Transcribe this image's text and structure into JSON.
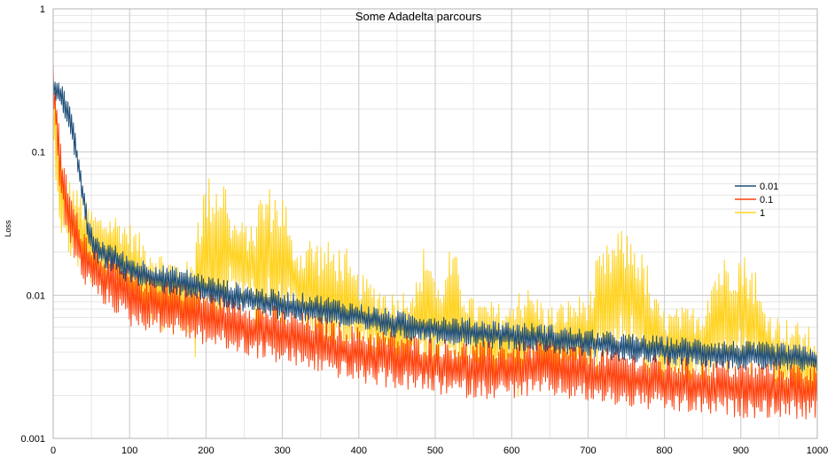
{
  "chart_data": {
    "type": "line",
    "title": "Some Adadelta parcours",
    "xlabel": "",
    "ylabel": "Loss",
    "xlim": [
      0,
      1000
    ],
    "ylim": [
      0.001,
      1
    ],
    "y_scale": "log",
    "grid": true,
    "legend_position": "right",
    "x_ticks": [
      0,
      100,
      200,
      300,
      400,
      500,
      600,
      700,
      800,
      900,
      1000
    ],
    "x_tick_labels": [
      "0",
      "100",
      "200",
      "300",
      "400",
      "500",
      "600",
      "700",
      "800",
      "900",
      "1000"
    ],
    "y_ticks": [
      0.001,
      0.01,
      0.1,
      1
    ],
    "y_tick_labels": [
      "0.001",
      "0.01",
      "0.1",
      "1"
    ],
    "series": [
      {
        "name": "0.01",
        "color": "#1f4e79",
        "noise": 0.1,
        "points": [
          [
            0,
            0.29
          ],
          [
            5,
            0.28
          ],
          [
            10,
            0.25
          ],
          [
            15,
            0.22
          ],
          [
            20,
            0.18
          ],
          [
            25,
            0.14
          ],
          [
            30,
            0.1
          ],
          [
            35,
            0.07
          ],
          [
            40,
            0.045
          ],
          [
            45,
            0.03
          ],
          [
            50,
            0.024
          ],
          [
            60,
            0.02
          ],
          [
            70,
            0.019
          ],
          [
            80,
            0.018
          ],
          [
            100,
            0.015
          ],
          [
            120,
            0.014
          ],
          [
            140,
            0.013
          ],
          [
            160,
            0.0125
          ],
          [
            180,
            0.012
          ],
          [
            200,
            0.011
          ],
          [
            250,
            0.0095
          ],
          [
            300,
            0.0085
          ],
          [
            350,
            0.008
          ],
          [
            400,
            0.007
          ],
          [
            450,
            0.0062
          ],
          [
            500,
            0.0058
          ],
          [
            550,
            0.0055
          ],
          [
            600,
            0.0052
          ],
          [
            650,
            0.005
          ],
          [
            700,
            0.0046
          ],
          [
            750,
            0.0043
          ],
          [
            800,
            0.0041
          ],
          [
            850,
            0.004
          ],
          [
            900,
            0.0038
          ],
          [
            950,
            0.0037
          ],
          [
            1000,
            0.0035
          ]
        ]
      },
      {
        "name": "0.1",
        "color": "#ff420e",
        "noise": 0.2,
        "points": [
          [
            0,
            0.28
          ],
          [
            3,
            0.2
          ],
          [
            6,
            0.12
          ],
          [
            10,
            0.07
          ],
          [
            15,
            0.05
          ],
          [
            20,
            0.04
          ],
          [
            25,
            0.03
          ],
          [
            30,
            0.025
          ],
          [
            40,
            0.019
          ],
          [
            50,
            0.016
          ],
          [
            60,
            0.014
          ],
          [
            80,
            0.012
          ],
          [
            100,
            0.0095
          ],
          [
            120,
            0.009
          ],
          [
            150,
            0.0085
          ],
          [
            200,
            0.007
          ],
          [
            250,
            0.006
          ],
          [
            300,
            0.0052
          ],
          [
            350,
            0.0045
          ],
          [
            400,
            0.0038
          ],
          [
            450,
            0.0035
          ],
          [
            500,
            0.0032
          ],
          [
            550,
            0.003
          ],
          [
            600,
            0.003
          ],
          [
            650,
            0.0031
          ],
          [
            700,
            0.0028
          ],
          [
            750,
            0.0026
          ],
          [
            800,
            0.0024
          ],
          [
            850,
            0.0023
          ],
          [
            900,
            0.0022
          ],
          [
            950,
            0.0022
          ],
          [
            1000,
            0.0021
          ]
        ]
      },
      {
        "name": "1",
        "color": "#ffd320",
        "noise": 0.28,
        "points": [
          [
            0,
            0.2
          ],
          [
            5,
            0.1
          ],
          [
            10,
            0.05
          ],
          [
            15,
            0.04
          ],
          [
            20,
            0.035
          ],
          [
            30,
            0.03
          ],
          [
            40,
            0.025
          ],
          [
            50,
            0.022
          ],
          [
            60,
            0.02
          ],
          [
            80,
            0.02
          ],
          [
            100,
            0.017
          ],
          [
            120,
            0.013
          ],
          [
            150,
            0.01
          ],
          [
            180,
            0.009
          ],
          [
            200,
            0.02
          ],
          [
            220,
            0.022
          ],
          [
            240,
            0.018
          ],
          [
            260,
            0.016
          ],
          [
            280,
            0.02
          ],
          [
            300,
            0.018
          ],
          [
            320,
            0.012
          ],
          [
            350,
            0.01
          ],
          [
            380,
            0.009
          ],
          [
            400,
            0.0075
          ],
          [
            450,
            0.0055
          ],
          [
            480,
            0.007
          ],
          [
            490,
            0.009
          ],
          [
            500,
            0.006
          ],
          [
            520,
            0.008
          ],
          [
            530,
            0.007
          ],
          [
            550,
            0.005
          ],
          [
            600,
            0.0045
          ],
          [
            620,
            0.006
          ],
          [
            650,
            0.0045
          ],
          [
            700,
            0.0055
          ],
          [
            720,
            0.008
          ],
          [
            740,
            0.011
          ],
          [
            760,
            0.01
          ],
          [
            780,
            0.006
          ],
          [
            800,
            0.0042
          ],
          [
            850,
            0.0045
          ],
          [
            870,
            0.007
          ],
          [
            900,
            0.008
          ],
          [
            920,
            0.006
          ],
          [
            940,
            0.004
          ],
          [
            970,
            0.0035
          ],
          [
            1000,
            0.003
          ]
        ],
        "spikes": [
          [
            185,
            230,
            1.9
          ],
          [
            265,
            305,
            1.7
          ],
          [
            330,
            385,
            1.4
          ],
          [
            480,
            500,
            1.6
          ],
          [
            515,
            535,
            1.5
          ],
          [
            600,
            610,
            1.5
          ],
          [
            710,
            780,
            1.5
          ],
          [
            855,
            920,
            1.5
          ]
        ]
      }
    ]
  }
}
